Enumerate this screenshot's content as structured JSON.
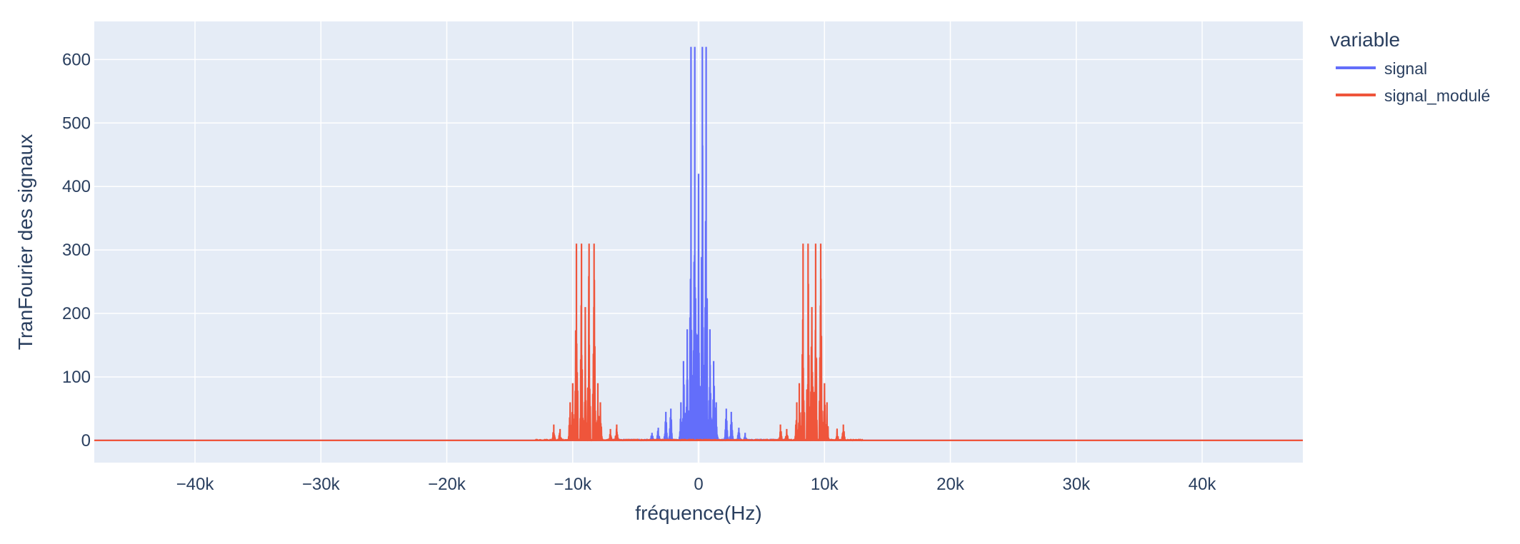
{
  "chart_data": {
    "type": "line",
    "title": "",
    "xlabel": "fréquence(Hz)",
    "ylabel": "TranFourier des signaux",
    "xlim": [
      -48000,
      48000
    ],
    "ylim": [
      -35,
      660
    ],
    "xticks": [
      -40000,
      -30000,
      -20000,
      -10000,
      0,
      10000,
      20000,
      30000,
      40000
    ],
    "xtick_labels": [
      "−40k",
      "−30k",
      "−20k",
      "−10k",
      "0",
      "10k",
      "20k",
      "30k",
      "40k"
    ],
    "yticks": [
      0,
      100,
      200,
      300,
      400,
      500,
      600
    ],
    "ytick_labels": [
      "0",
      "100",
      "200",
      "300",
      "400",
      "500",
      "600"
    ],
    "grid": true,
    "plot_bgcolor": "#e5ecf6",
    "legend": {
      "title": "variable",
      "position": "top-right-outside"
    },
    "series": [
      {
        "name": "signal",
        "color": "#636efa",
        "peaks": [
          {
            "x": -300,
            "y": 620
          },
          {
            "x": 300,
            "y": 620
          },
          {
            "x": -600,
            "y": 620
          },
          {
            "x": 600,
            "y": 620
          },
          {
            "x": 0,
            "y": 420
          },
          {
            "x": -900,
            "y": 175
          },
          {
            "x": 900,
            "y": 175
          },
          {
            "x": -1200,
            "y": 125
          },
          {
            "x": 1200,
            "y": 125
          },
          {
            "x": -1400,
            "y": 60
          },
          {
            "x": 1400,
            "y": 60
          },
          {
            "x": -2200,
            "y": 50
          },
          {
            "x": 2200,
            "y": 50
          },
          {
            "x": -2600,
            "y": 45
          },
          {
            "x": 2600,
            "y": 45
          },
          {
            "x": -3200,
            "y": 20
          },
          {
            "x": 3200,
            "y": 20
          },
          {
            "x": -3700,
            "y": 12
          },
          {
            "x": 3700,
            "y": 12
          }
        ],
        "span": [
          -7000,
          7000
        ]
      },
      {
        "name": "signal_modulé",
        "color": "#ef553b",
        "peaks": [
          {
            "x": -9700,
            "y": 310
          },
          {
            "x": -9300,
            "y": 310
          },
          {
            "x": -8700,
            "y": 310
          },
          {
            "x": -8300,
            "y": 310
          },
          {
            "x": -9000,
            "y": 210
          },
          {
            "x": -10000,
            "y": 90
          },
          {
            "x": -8000,
            "y": 90
          },
          {
            "x": -10200,
            "y": 60
          },
          {
            "x": -7800,
            "y": 60
          },
          {
            "x": -11500,
            "y": 25
          },
          {
            "x": -6500,
            "y": 25
          },
          {
            "x": -11000,
            "y": 18
          },
          {
            "x": -7000,
            "y": 18
          },
          {
            "x": 8300,
            "y": 310
          },
          {
            "x": 8700,
            "y": 310
          },
          {
            "x": 9300,
            "y": 310
          },
          {
            "x": 9700,
            "y": 310
          },
          {
            "x": 9000,
            "y": 210
          },
          {
            "x": 8000,
            "y": 90
          },
          {
            "x": 10000,
            "y": 90
          },
          {
            "x": 7800,
            "y": 60
          },
          {
            "x": 10200,
            "y": 60
          },
          {
            "x": 6500,
            "y": 25
          },
          {
            "x": 11500,
            "y": 25
          },
          {
            "x": 7000,
            "y": 18
          },
          {
            "x": 11000,
            "y": 18
          }
        ],
        "span": [
          -13000,
          13000
        ]
      }
    ]
  }
}
